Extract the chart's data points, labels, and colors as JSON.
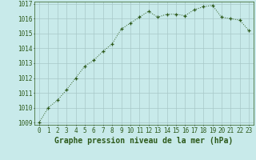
{
  "x": [
    0,
    1,
    2,
    3,
    4,
    5,
    6,
    7,
    8,
    9,
    10,
    11,
    12,
    13,
    14,
    15,
    16,
    17,
    18,
    19,
    20,
    21,
    22,
    23
  ],
  "y": [
    1009.0,
    1010.0,
    1010.5,
    1011.2,
    1012.0,
    1012.8,
    1013.2,
    1013.8,
    1014.3,
    1015.3,
    1015.7,
    1016.1,
    1016.5,
    1016.1,
    1016.3,
    1016.3,
    1016.2,
    1016.6,
    1016.8,
    1016.9,
    1016.1,
    1016.0,
    1015.9,
    1015.2
  ],
  "ylim": [
    1009,
    1017
  ],
  "xlim": [
    -0.5,
    23.5
  ],
  "yticks": [
    1009,
    1010,
    1011,
    1012,
    1013,
    1014,
    1015,
    1016,
    1017
  ],
  "xticks": [
    0,
    1,
    2,
    3,
    4,
    5,
    6,
    7,
    8,
    9,
    10,
    11,
    12,
    13,
    14,
    15,
    16,
    17,
    18,
    19,
    20,
    21,
    22,
    23
  ],
  "xlabel": "Graphe pression niveau de la mer (hPa)",
  "line_color": "#2d5a1b",
  "marker": "+",
  "marker_size": 3,
  "bg_color": "#c8eaea",
  "grid_color": "#a8c8c8",
  "xlabel_fontsize": 7,
  "tick_fontsize": 5.5
}
